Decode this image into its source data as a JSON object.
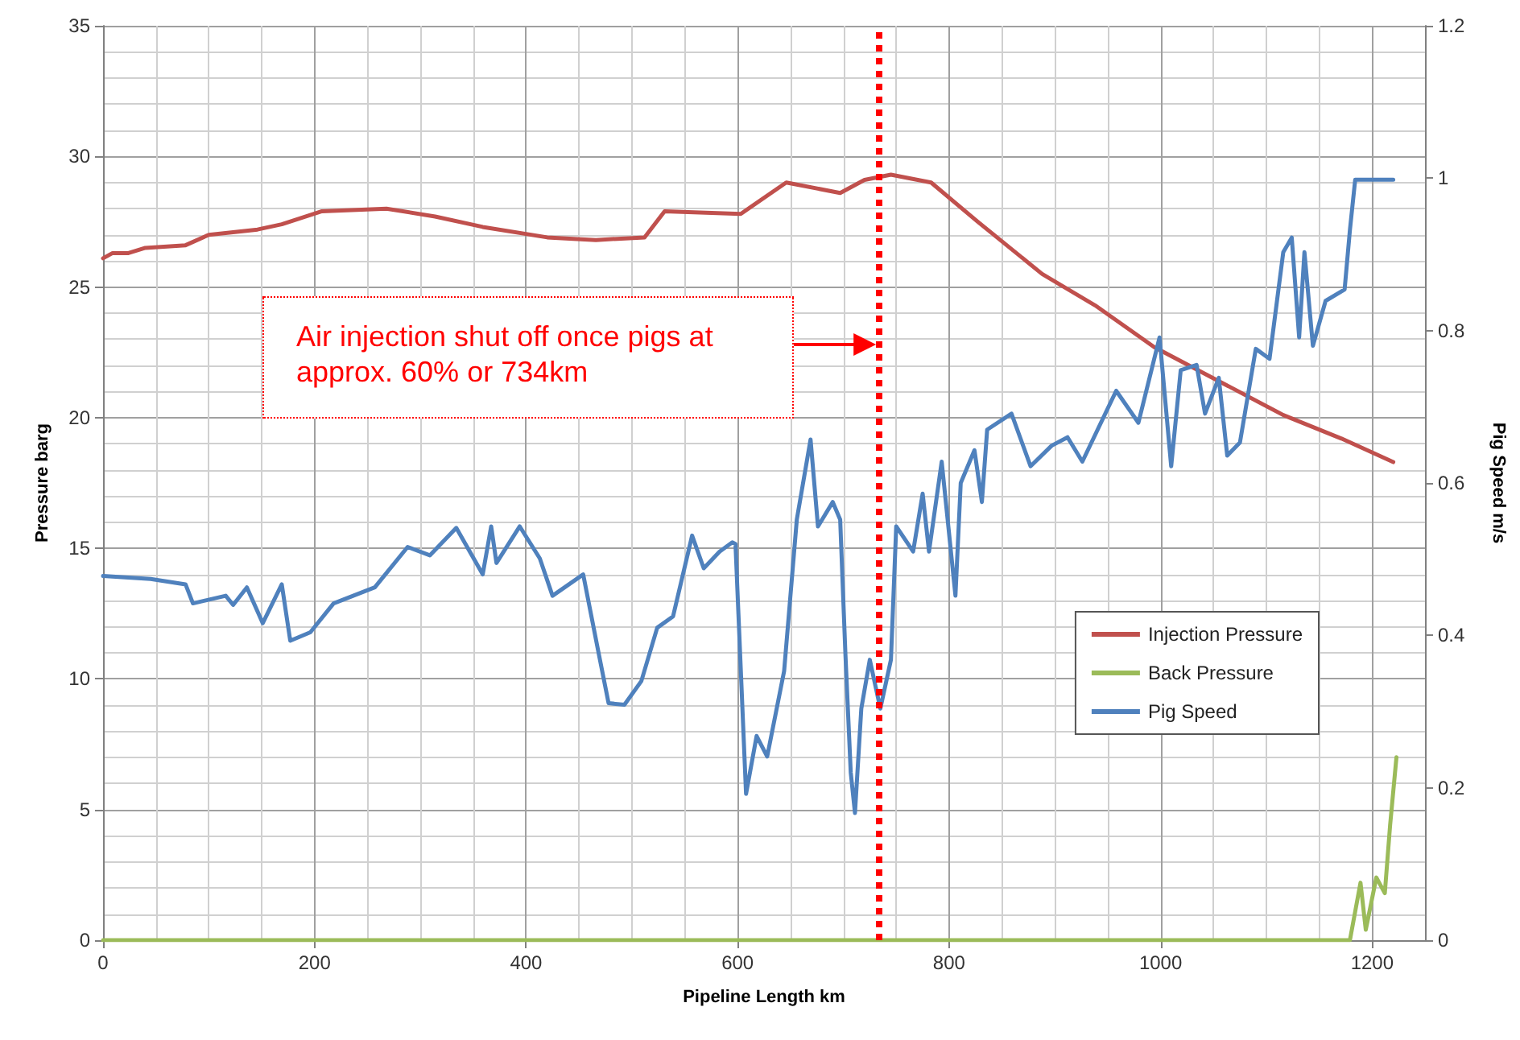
{
  "chart_data": {
    "type": "line",
    "xlabel": "Pipeline Length km",
    "ylabel": "Pressure barg",
    "y2label": "Pig Speed m/s",
    "xlim": [
      0,
      1250
    ],
    "xticks": [
      0,
      200,
      400,
      600,
      800,
      1000,
      1200
    ],
    "ylim": [
      0,
      35
    ],
    "yticks": [
      0,
      5,
      10,
      15,
      20,
      25,
      30,
      35
    ],
    "y2lim": [
      0,
      1.2
    ],
    "y2ticks": [
      0,
      0.2,
      0.4,
      0.6,
      0.8,
      1,
      1.2
    ],
    "grid": true,
    "legend": "bottom right",
    "marker": "none",
    "line_style": "solid",
    "annotations": [
      "Air injection shut off once pigs at approx. 60% or 734km"
    ],
    "ref_lines": [
      {
        "axis": "x",
        "value": 734,
        "color": "#ff0000",
        "line_style": "dotted"
      }
    ],
    "series": [
      {
        "name": "Injection Pressure",
        "color": "#c0504d",
        "x": [
          0,
          9,
          24,
          40,
          78,
          100,
          146,
          169,
          207,
          268,
          314,
          359,
          420,
          466,
          512,
          531,
          603,
          646,
          697,
          720,
          745,
          783,
          827,
          888,
          938,
          994,
          1055,
          1116,
          1171,
          1220
        ],
        "values": [
          26.1,
          26.3,
          26.3,
          26.5,
          26.6,
          27.0,
          27.2,
          27.4,
          27.9,
          28.0,
          27.7,
          27.3,
          26.9,
          26.8,
          26.9,
          27.9,
          27.8,
          29.0,
          28.6,
          29.1,
          29.3,
          29.0,
          27.5,
          25.5,
          24.3,
          22.7,
          21.4,
          20.1,
          19.2,
          18.3
        ]
      },
      {
        "name": "Back Pressure",
        "color": "#9bbb59",
        "x": [
          0,
          1179,
          1189,
          1194,
          1204,
          1212,
          1217,
          1223
        ],
        "values": [
          0,
          0,
          2.2,
          0.4,
          2.4,
          1.8,
          4.4,
          7.0
        ]
      },
      {
        "name": "Pig Speed",
        "color": "#4f81bd",
        "axis": "y2",
        "x": [
          0,
          45,
          78,
          85,
          116,
          123,
          136,
          151,
          169,
          177,
          196,
          218,
          257,
          288,
          309,
          334,
          359,
          367,
          372,
          394,
          413,
          425,
          454,
          469,
          478,
          493,
          509,
          524,
          539,
          557,
          568,
          583,
          595,
          598,
          608,
          618,
          628,
          644,
          656,
          669,
          676,
          690,
          697,
          702,
          707,
          711,
          717,
          725,
          735,
          745,
          750,
          766,
          775,
          781,
          793,
          806,
          811,
          824,
          831,
          836,
          859,
          877,
          897,
          912,
          926,
          958,
          979,
          999,
          1010,
          1019,
          1034,
          1042,
          1055,
          1063,
          1075,
          1090,
          1103,
          1116,
          1124,
          1131,
          1136,
          1144,
          1156,
          1174,
          1179,
          1184,
          1220
        ],
        "values": [
          0.478,
          0.474,
          0.467,
          0.442,
          0.452,
          0.44,
          0.463,
          0.416,
          0.467,
          0.393,
          0.404,
          0.442,
          0.463,
          0.516,
          0.505,
          0.541,
          0.48,
          0.543,
          0.495,
          0.543,
          0.501,
          0.452,
          0.48,
          0.374,
          0.311,
          0.309,
          0.34,
          0.41,
          0.425,
          0.531,
          0.488,
          0.51,
          0.522,
          0.52,
          0.192,
          0.268,
          0.241,
          0.353,
          0.552,
          0.657,
          0.543,
          0.575,
          0.552,
          0.374,
          0.22,
          0.167,
          0.304,
          0.368,
          0.304,
          0.368,
          0.543,
          0.51,
          0.586,
          0.51,
          0.628,
          0.452,
          0.6,
          0.643,
          0.575,
          0.67,
          0.691,
          0.622,
          0.649,
          0.66,
          0.628,
          0.721,
          0.679,
          0.791,
          0.622,
          0.748,
          0.755,
          0.691,
          0.738,
          0.636,
          0.653,
          0.776,
          0.763,
          0.903,
          0.922,
          0.791,
          0.903,
          0.78,
          0.839,
          0.854,
          0.932,
          0.998,
          0.998
        ]
      }
    ]
  }
}
